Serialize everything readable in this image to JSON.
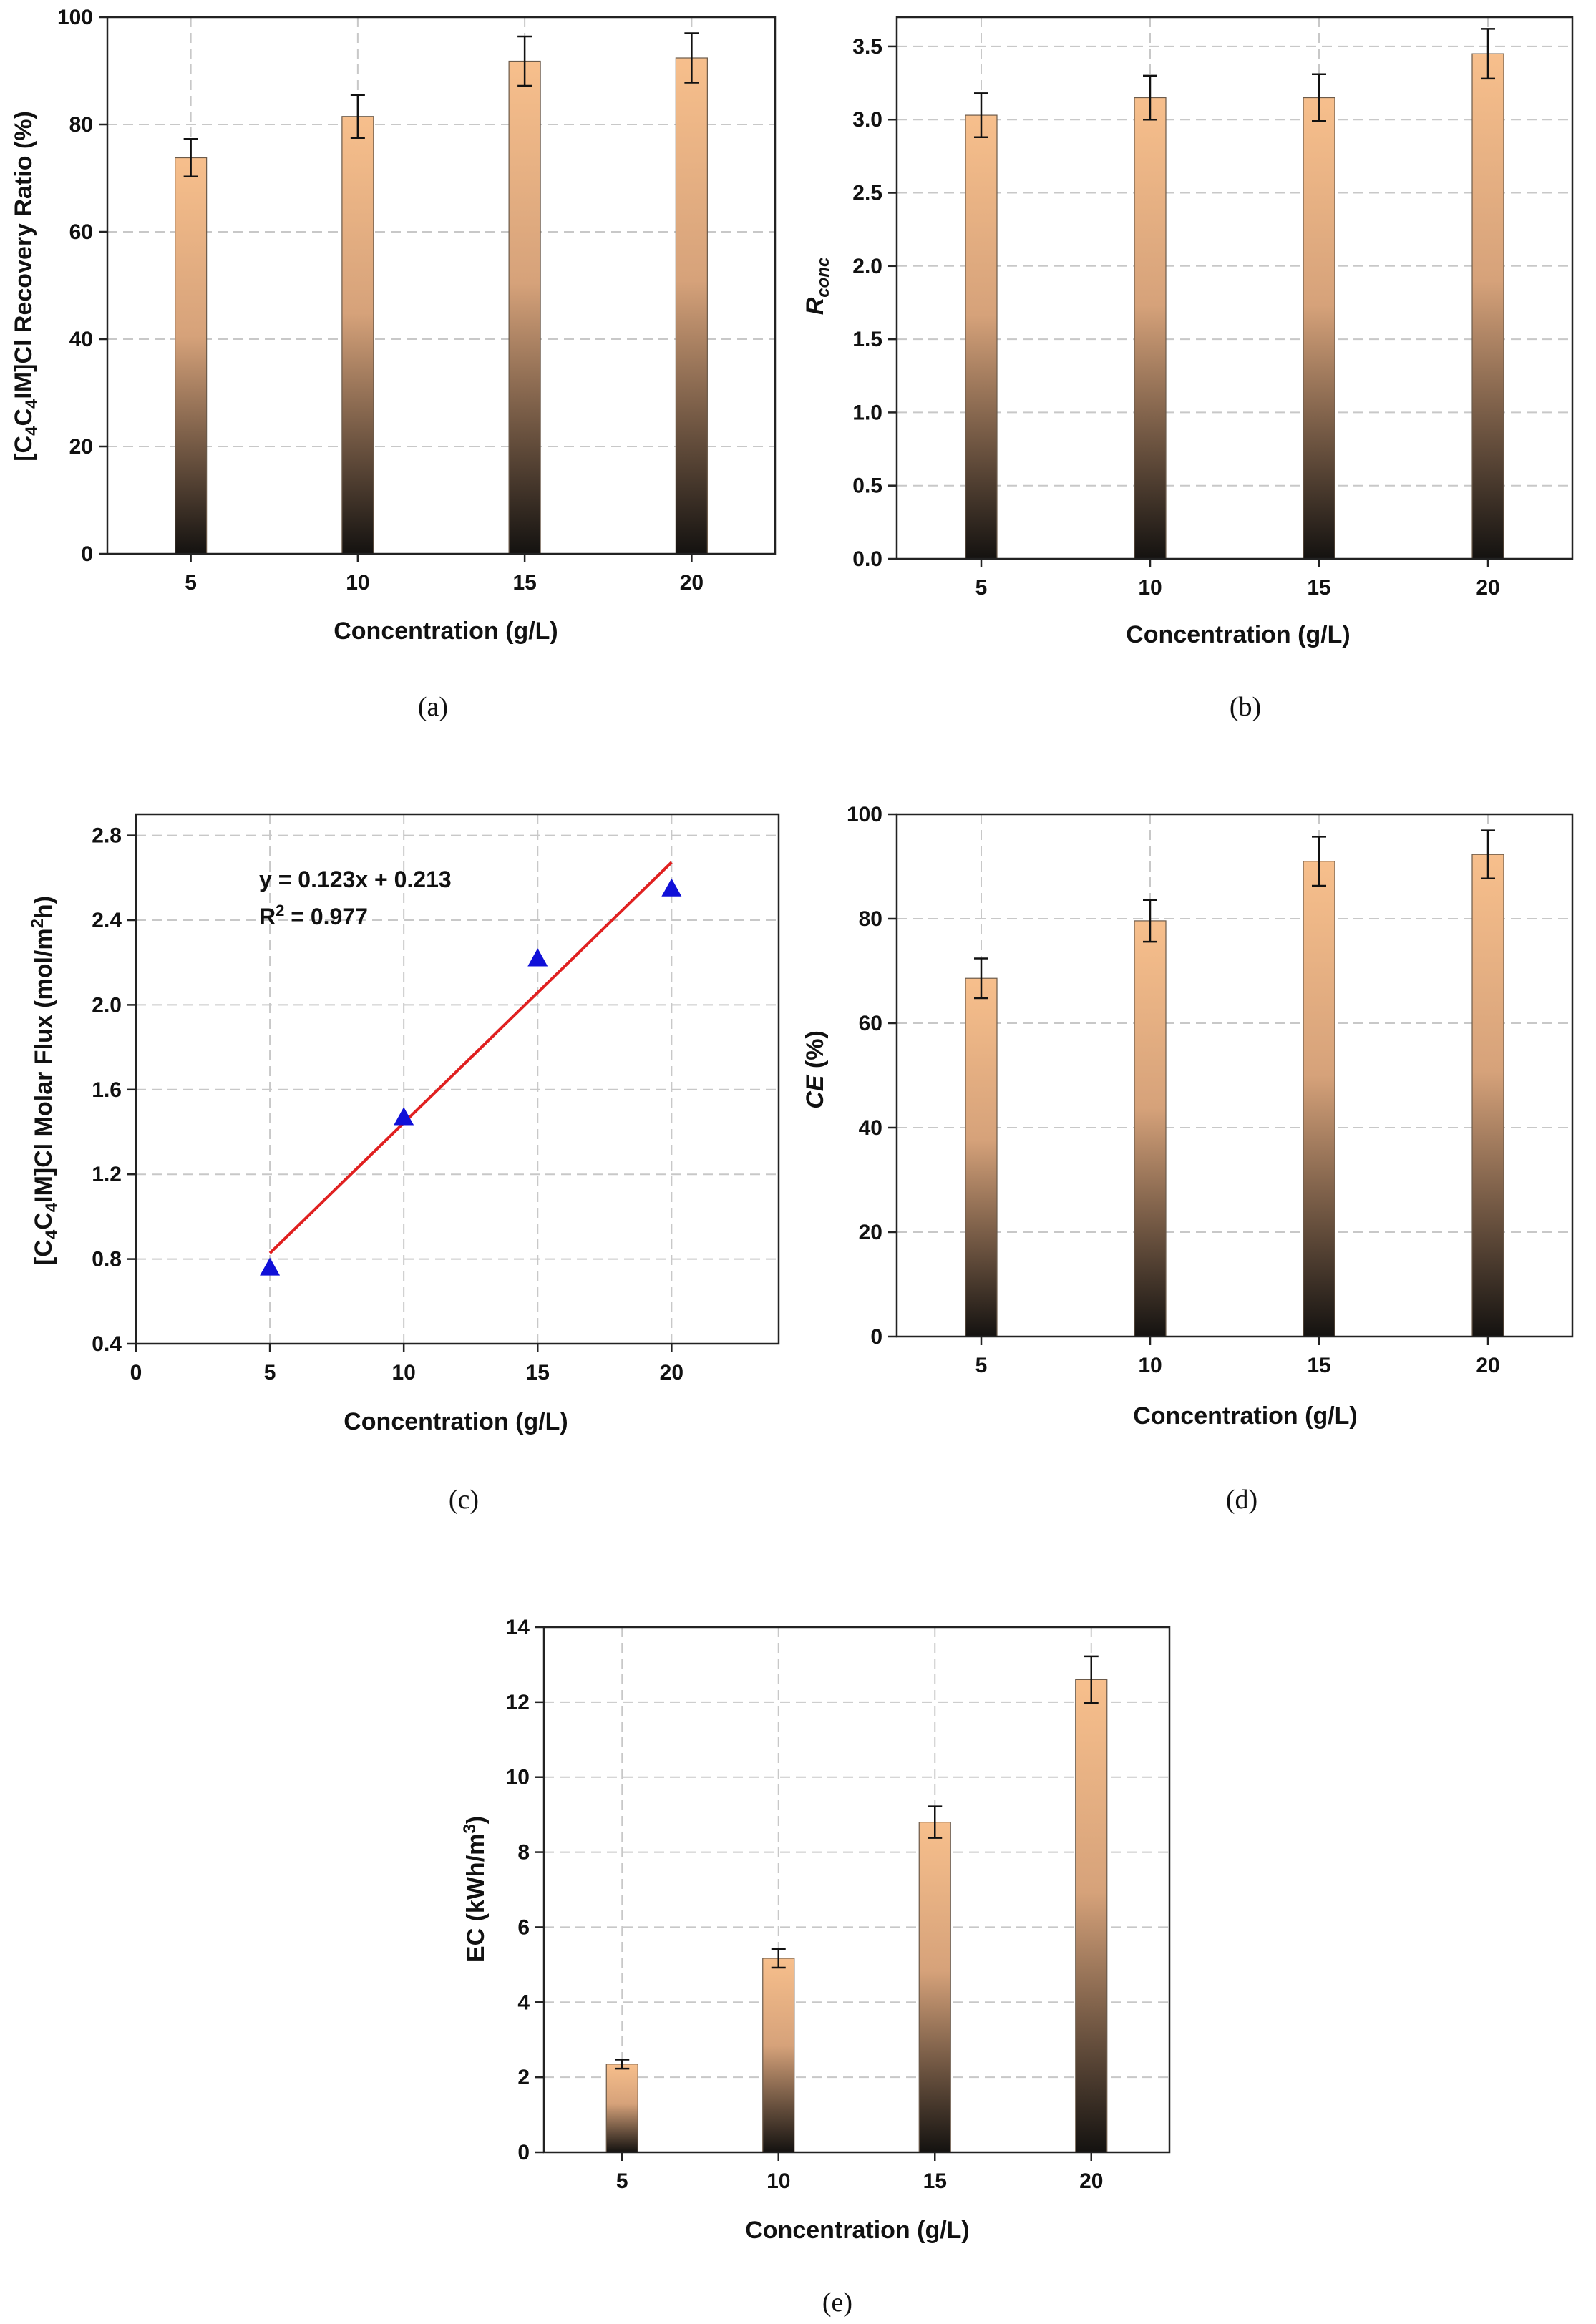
{
  "chart_data": [
    {
      "id": "a",
      "type": "bar",
      "caption": "(a)",
      "categories": [
        "5",
        "10",
        "15",
        "20"
      ],
      "values": [
        73.8,
        81.5,
        91.8,
        92.4
      ],
      "errors": [
        3.5,
        4.0,
        4.6,
        4.6
      ],
      "ylim": [
        0,
        100
      ],
      "yticks": [
        "0",
        "20",
        "40",
        "60",
        "80",
        "100"
      ],
      "xlabel": "Concentration (g/L)",
      "ylabel": "[C4C4IM]Cl Recovery Ratio (%)",
      "bar_color_top": "#f7bf8c",
      "bar_color_bottom": "#1a1510"
    },
    {
      "id": "b",
      "type": "bar",
      "caption": "(b)",
      "categories": [
        "5",
        "10",
        "15",
        "20"
      ],
      "values": [
        3.03,
        3.15,
        3.15,
        3.45
      ],
      "errors": [
        0.15,
        0.15,
        0.16,
        0.17
      ],
      "ylim": [
        0,
        3.7
      ],
      "yticks": [
        "0.0",
        "0.5",
        "1.0",
        "1.5",
        "2.0",
        "2.5",
        "3.0",
        "3.5"
      ],
      "xlabel": "Concentration (g/L)",
      "ylabel": "Rconc",
      "bar_color_top": "#f7bf8c",
      "bar_color_bottom": "#1a1510"
    },
    {
      "id": "c",
      "type": "scatter",
      "caption": "(c)",
      "x": [
        5,
        10,
        15,
        20
      ],
      "y": [
        0.76,
        1.47,
        2.22,
        2.55
      ],
      "fit": {
        "slope": 0.123,
        "intercept": 0.213,
        "x_range": [
          5,
          20
        ]
      },
      "equation": "y = 0.123x + 0.213",
      "r_squared": "R2 = 0.977",
      "xlim": [
        0,
        24
      ],
      "ylim": [
        0.4,
        2.9
      ],
      "xticks": [
        "0",
        "5",
        "10",
        "15",
        "20"
      ],
      "yticks": [
        "0.4",
        "0.8",
        "1.2",
        "1.6",
        "2.0",
        "2.4",
        "2.8"
      ],
      "xlabel": "Concentration (g/L)",
      "ylabel": "[C4C4IM]Cl Molar Flux (mol/m2h)",
      "marker_color": "#1010d8",
      "line_color": "#e02020"
    },
    {
      "id": "d",
      "type": "bar",
      "caption": "(d)",
      "categories": [
        "5",
        "10",
        "15",
        "20"
      ],
      "values": [
        68.6,
        79.6,
        91.0,
        92.3
      ],
      "errors": [
        3.8,
        4.0,
        4.7,
        4.6
      ],
      "ylim": [
        0,
        100
      ],
      "yticks": [
        "0",
        "20",
        "40",
        "60",
        "80",
        "100"
      ],
      "xlabel": "Concentration (g/L)",
      "ylabel": "CE (%)",
      "bar_color_top": "#f7bf8c",
      "bar_color_bottom": "#1a1510"
    },
    {
      "id": "e",
      "type": "bar",
      "caption": "(e)",
      "categories": [
        "5",
        "10",
        "15",
        "20"
      ],
      "values": [
        2.35,
        5.17,
        8.8,
        12.6
      ],
      "errors": [
        0.12,
        0.25,
        0.42,
        0.62
      ],
      "ylim": [
        0,
        14
      ],
      "yticks": [
        "0",
        "2",
        "4",
        "6",
        "8",
        "10",
        "12",
        "14"
      ],
      "xlabel": "Concentration (g/L)",
      "ylabel": "EC (kWh/m3)",
      "bar_color_top": "#f7bf8c",
      "bar_color_bottom": "#1a1510"
    }
  ]
}
